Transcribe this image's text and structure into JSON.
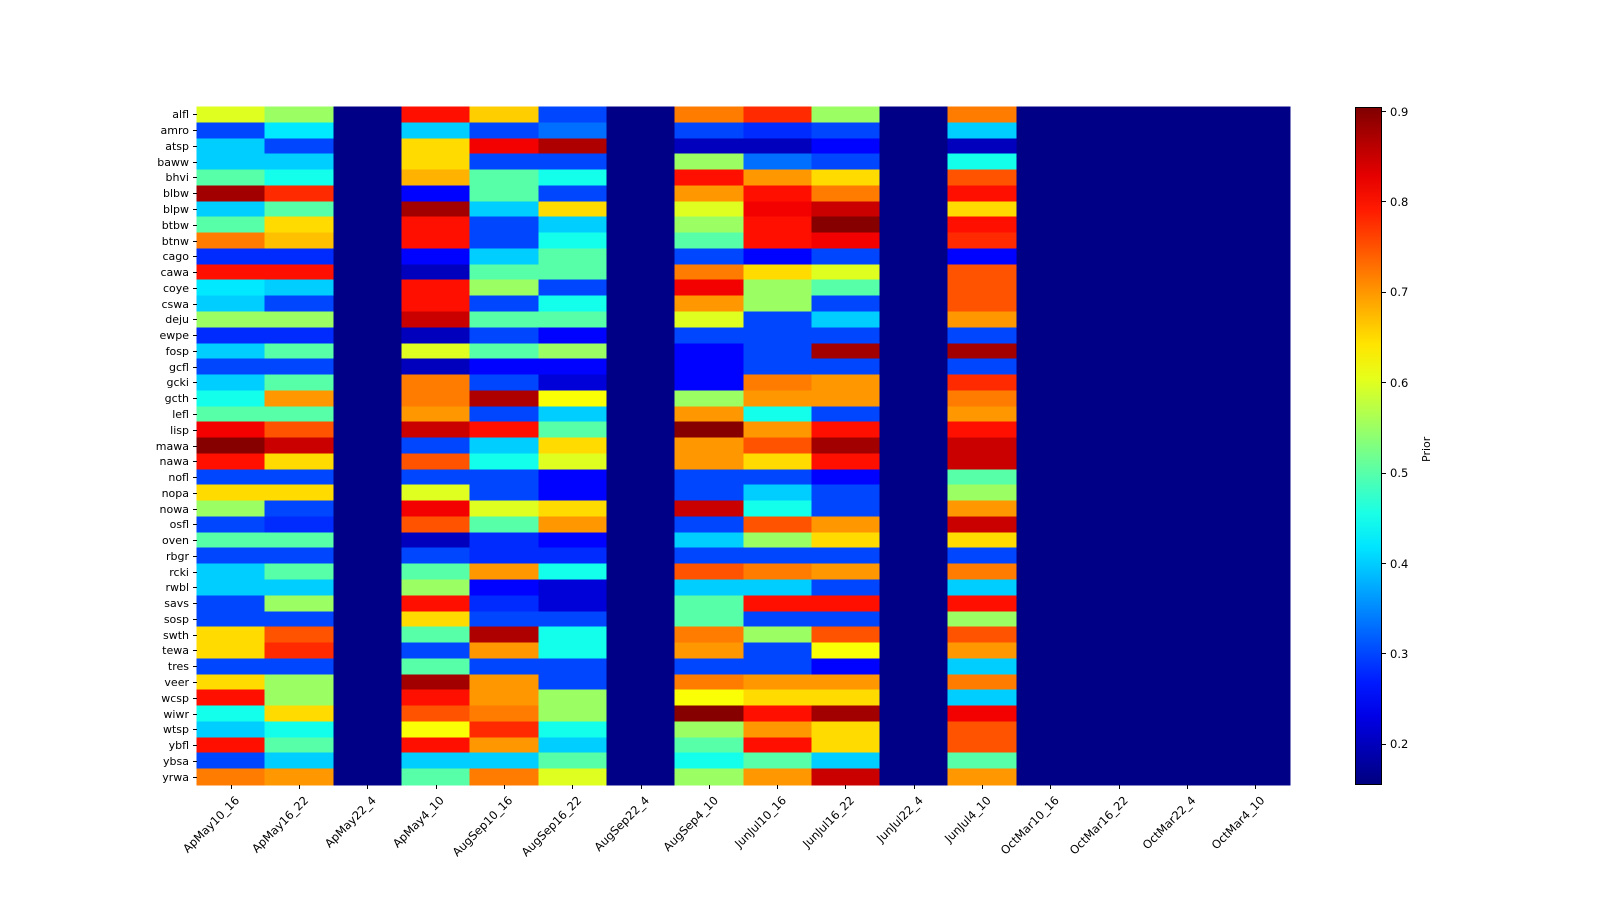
{
  "figure": {
    "background": "#ffffff",
    "min_color": "#000080",
    "max_color": "#800000"
  },
  "chart_data": {
    "type": "heatmap",
    "colormap": "jet",
    "colorbar_label": "Prior",
    "colorbar_ticks": [
      0.2,
      0.3,
      0.4,
      0.5,
      0.6,
      0.7,
      0.8,
      0.9
    ],
    "vmin": 0.155,
    "vmax": 0.905,
    "x_labels": [
      "ApMay10_16",
      "ApMay16_22",
      "ApMay22_4",
      "ApMay4_10",
      "AugSep10_16",
      "AugSep16_22",
      "AugSep22_4",
      "AugSep4_10",
      "JunJul10_16",
      "JunJul16_22",
      "JunJul22_4",
      "JunJul4_10",
      "OctMar10_16",
      "OctMar16_22",
      "OctMar22_4",
      "OctMar4_10"
    ],
    "y_labels": [
      "alfl",
      "amro",
      "atsp",
      "baww",
      "bhvi",
      "blbw",
      "blpw",
      "btbw",
      "btnw",
      "cago",
      "cawa",
      "coye",
      "cswa",
      "deju",
      "ewpe",
      "fosp",
      "gcfl",
      "gcki",
      "gcth",
      "lefl",
      "lisp",
      "mawa",
      "nawa",
      "nofl",
      "nopa",
      "nowa",
      "osfl",
      "oven",
      "rbgr",
      "rcki",
      "rwbl",
      "savs",
      "sosp",
      "swth",
      "tewa",
      "tres",
      "veer",
      "wcsp",
      "wiwr",
      "wtsp",
      "ybfl",
      "ybsa",
      "yrwa"
    ],
    "values": [
      [
        0.6,
        0.55,
        0.16,
        0.8,
        0.66,
        0.3,
        0.16,
        0.72,
        0.78,
        0.55,
        0.16,
        0.72,
        0.16,
        0.16,
        0.16,
        0.16
      ],
      [
        0.3,
        0.42,
        0.16,
        0.4,
        0.3,
        0.33,
        0.16,
        0.3,
        0.28,
        0.3,
        0.16,
        0.4,
        0.16,
        0.16,
        0.16,
        0.16
      ],
      [
        0.4,
        0.3,
        0.16,
        0.65,
        0.82,
        0.87,
        0.16,
        0.2,
        0.2,
        0.25,
        0.16,
        0.2,
        0.16,
        0.16,
        0.16,
        0.16
      ],
      [
        0.4,
        0.4,
        0.16,
        0.65,
        0.3,
        0.3,
        0.16,
        0.55,
        0.33,
        0.3,
        0.16,
        0.45,
        0.16,
        0.16,
        0.16,
        0.16
      ],
      [
        0.5,
        0.45,
        0.16,
        0.68,
        0.5,
        0.45,
        0.16,
        0.8,
        0.7,
        0.65,
        0.16,
        0.75,
        0.16,
        0.16,
        0.16,
        0.16
      ],
      [
        0.88,
        0.78,
        0.16,
        0.25,
        0.5,
        0.3,
        0.16,
        0.7,
        0.8,
        0.72,
        0.16,
        0.8,
        0.16,
        0.16,
        0.16,
        0.16
      ],
      [
        0.4,
        0.5,
        0.16,
        0.88,
        0.4,
        0.65,
        0.16,
        0.6,
        0.82,
        0.85,
        0.16,
        0.65,
        0.16,
        0.16,
        0.16,
        0.16
      ],
      [
        0.5,
        0.65,
        0.16,
        0.8,
        0.3,
        0.4,
        0.16,
        0.55,
        0.8,
        0.9,
        0.16,
        0.8,
        0.16,
        0.16,
        0.16,
        0.16
      ],
      [
        0.72,
        0.67,
        0.16,
        0.8,
        0.3,
        0.45,
        0.16,
        0.5,
        0.8,
        0.82,
        0.16,
        0.78,
        0.16,
        0.16,
        0.16,
        0.16
      ],
      [
        0.28,
        0.28,
        0.16,
        0.25,
        0.4,
        0.5,
        0.16,
        0.3,
        0.25,
        0.3,
        0.16,
        0.25,
        0.16,
        0.16,
        0.16,
        0.16
      ],
      [
        0.8,
        0.8,
        0.16,
        0.2,
        0.5,
        0.5,
        0.16,
        0.72,
        0.65,
        0.6,
        0.16,
        0.75,
        0.16,
        0.16,
        0.16,
        0.16
      ],
      [
        0.42,
        0.4,
        0.16,
        0.8,
        0.55,
        0.3,
        0.16,
        0.82,
        0.55,
        0.5,
        0.16,
        0.75,
        0.16,
        0.16,
        0.16,
        0.16
      ],
      [
        0.4,
        0.3,
        0.16,
        0.8,
        0.3,
        0.45,
        0.16,
        0.7,
        0.55,
        0.3,
        0.16,
        0.75,
        0.16,
        0.16,
        0.16,
        0.16
      ],
      [
        0.55,
        0.55,
        0.16,
        0.85,
        0.5,
        0.5,
        0.16,
        0.6,
        0.3,
        0.4,
        0.16,
        0.7,
        0.16,
        0.16,
        0.16,
        0.16
      ],
      [
        0.28,
        0.28,
        0.16,
        0.2,
        0.3,
        0.25,
        0.16,
        0.3,
        0.3,
        0.3,
        0.16,
        0.3,
        0.16,
        0.16,
        0.16,
        0.16
      ],
      [
        0.4,
        0.5,
        0.16,
        0.6,
        0.5,
        0.55,
        0.16,
        0.25,
        0.3,
        0.88,
        0.16,
        0.88,
        0.16,
        0.16,
        0.16,
        0.16
      ],
      [
        0.3,
        0.3,
        0.16,
        0.2,
        0.25,
        0.25,
        0.16,
        0.25,
        0.3,
        0.3,
        0.16,
        0.3,
        0.16,
        0.16,
        0.16,
        0.16
      ],
      [
        0.4,
        0.5,
        0.16,
        0.72,
        0.3,
        0.22,
        0.16,
        0.25,
        0.72,
        0.7,
        0.16,
        0.78,
        0.16,
        0.16,
        0.16,
        0.16
      ],
      [
        0.45,
        0.7,
        0.16,
        0.72,
        0.87,
        0.62,
        0.16,
        0.55,
        0.7,
        0.7,
        0.16,
        0.72,
        0.16,
        0.16,
        0.16,
        0.16
      ],
      [
        0.5,
        0.5,
        0.16,
        0.7,
        0.3,
        0.4,
        0.16,
        0.7,
        0.45,
        0.3,
        0.16,
        0.7,
        0.16,
        0.16,
        0.16,
        0.16
      ],
      [
        0.82,
        0.75,
        0.16,
        0.85,
        0.8,
        0.5,
        0.16,
        0.9,
        0.7,
        0.8,
        0.16,
        0.8,
        0.16,
        0.16,
        0.16,
        0.16
      ],
      [
        0.9,
        0.85,
        0.16,
        0.3,
        0.4,
        0.65,
        0.16,
        0.7,
        0.75,
        0.88,
        0.16,
        0.85,
        0.16,
        0.16,
        0.16,
        0.16
      ],
      [
        0.8,
        0.65,
        0.16,
        0.75,
        0.45,
        0.6,
        0.16,
        0.7,
        0.65,
        0.8,
        0.16,
        0.85,
        0.16,
        0.16,
        0.16,
        0.16
      ],
      [
        0.3,
        0.3,
        0.16,
        0.3,
        0.3,
        0.25,
        0.16,
        0.3,
        0.3,
        0.25,
        0.16,
        0.5,
        0.16,
        0.16,
        0.16,
        0.16
      ],
      [
        0.65,
        0.65,
        0.16,
        0.6,
        0.3,
        0.25,
        0.16,
        0.3,
        0.4,
        0.3,
        0.16,
        0.55,
        0.16,
        0.16,
        0.16,
        0.16
      ],
      [
        0.55,
        0.3,
        0.16,
        0.82,
        0.6,
        0.65,
        0.16,
        0.85,
        0.45,
        0.3,
        0.16,
        0.7,
        0.16,
        0.16,
        0.16,
        0.16
      ],
      [
        0.3,
        0.28,
        0.16,
        0.75,
        0.5,
        0.7,
        0.16,
        0.3,
        0.75,
        0.7,
        0.16,
        0.85,
        0.16,
        0.16,
        0.16,
        0.16
      ],
      [
        0.5,
        0.5,
        0.16,
        0.2,
        0.28,
        0.25,
        0.16,
        0.4,
        0.55,
        0.65,
        0.16,
        0.65,
        0.16,
        0.16,
        0.16,
        0.16
      ],
      [
        0.3,
        0.3,
        0.16,
        0.3,
        0.28,
        0.28,
        0.16,
        0.3,
        0.3,
        0.3,
        0.16,
        0.3,
        0.16,
        0.16,
        0.16,
        0.16
      ],
      [
        0.4,
        0.5,
        0.16,
        0.5,
        0.7,
        0.45,
        0.16,
        0.75,
        0.72,
        0.7,
        0.16,
        0.72,
        0.16,
        0.16,
        0.16,
        0.16
      ],
      [
        0.4,
        0.4,
        0.16,
        0.55,
        0.25,
        0.22,
        0.16,
        0.4,
        0.4,
        0.3,
        0.16,
        0.4,
        0.16,
        0.16,
        0.16,
        0.16
      ],
      [
        0.3,
        0.55,
        0.16,
        0.8,
        0.28,
        0.22,
        0.16,
        0.5,
        0.8,
        0.8,
        0.16,
        0.8,
        0.16,
        0.16,
        0.16,
        0.16
      ],
      [
        0.3,
        0.3,
        0.16,
        0.65,
        0.3,
        0.3,
        0.16,
        0.5,
        0.3,
        0.3,
        0.16,
        0.55,
        0.16,
        0.16,
        0.16,
        0.16
      ],
      [
        0.65,
        0.75,
        0.16,
        0.5,
        0.87,
        0.45,
        0.16,
        0.72,
        0.55,
        0.75,
        0.16,
        0.75,
        0.16,
        0.16,
        0.16,
        0.16
      ],
      [
        0.65,
        0.78,
        0.16,
        0.3,
        0.7,
        0.45,
        0.16,
        0.7,
        0.3,
        0.62,
        0.16,
        0.7,
        0.16,
        0.16,
        0.16,
        0.16
      ],
      [
        0.3,
        0.3,
        0.16,
        0.5,
        0.3,
        0.3,
        0.16,
        0.3,
        0.3,
        0.25,
        0.16,
        0.4,
        0.16,
        0.16,
        0.16,
        0.16
      ],
      [
        0.65,
        0.55,
        0.16,
        0.88,
        0.7,
        0.3,
        0.16,
        0.72,
        0.7,
        0.7,
        0.16,
        0.72,
        0.16,
        0.16,
        0.16,
        0.16
      ],
      [
        0.8,
        0.55,
        0.16,
        0.8,
        0.7,
        0.55,
        0.16,
        0.62,
        0.65,
        0.65,
        0.16,
        0.4,
        0.16,
        0.16,
        0.16,
        0.16
      ],
      [
        0.45,
        0.65,
        0.16,
        0.75,
        0.72,
        0.55,
        0.16,
        0.9,
        0.8,
        0.88,
        0.16,
        0.82,
        0.16,
        0.16,
        0.16,
        0.16
      ],
      [
        0.4,
        0.45,
        0.16,
        0.62,
        0.78,
        0.45,
        0.16,
        0.55,
        0.7,
        0.65,
        0.16,
        0.75,
        0.16,
        0.16,
        0.16,
        0.16
      ],
      [
        0.8,
        0.5,
        0.16,
        0.8,
        0.7,
        0.4,
        0.16,
        0.5,
        0.8,
        0.65,
        0.16,
        0.75,
        0.16,
        0.16,
        0.16,
        0.16
      ],
      [
        0.3,
        0.4,
        0.16,
        0.4,
        0.4,
        0.5,
        0.16,
        0.45,
        0.5,
        0.4,
        0.16,
        0.5,
        0.16,
        0.16,
        0.16,
        0.16
      ],
      [
        0.72,
        0.7,
        0.16,
        0.5,
        0.72,
        0.6,
        0.16,
        0.55,
        0.7,
        0.85,
        0.16,
        0.7,
        0.16,
        0.16,
        0.16,
        0.16
      ]
    ]
  }
}
